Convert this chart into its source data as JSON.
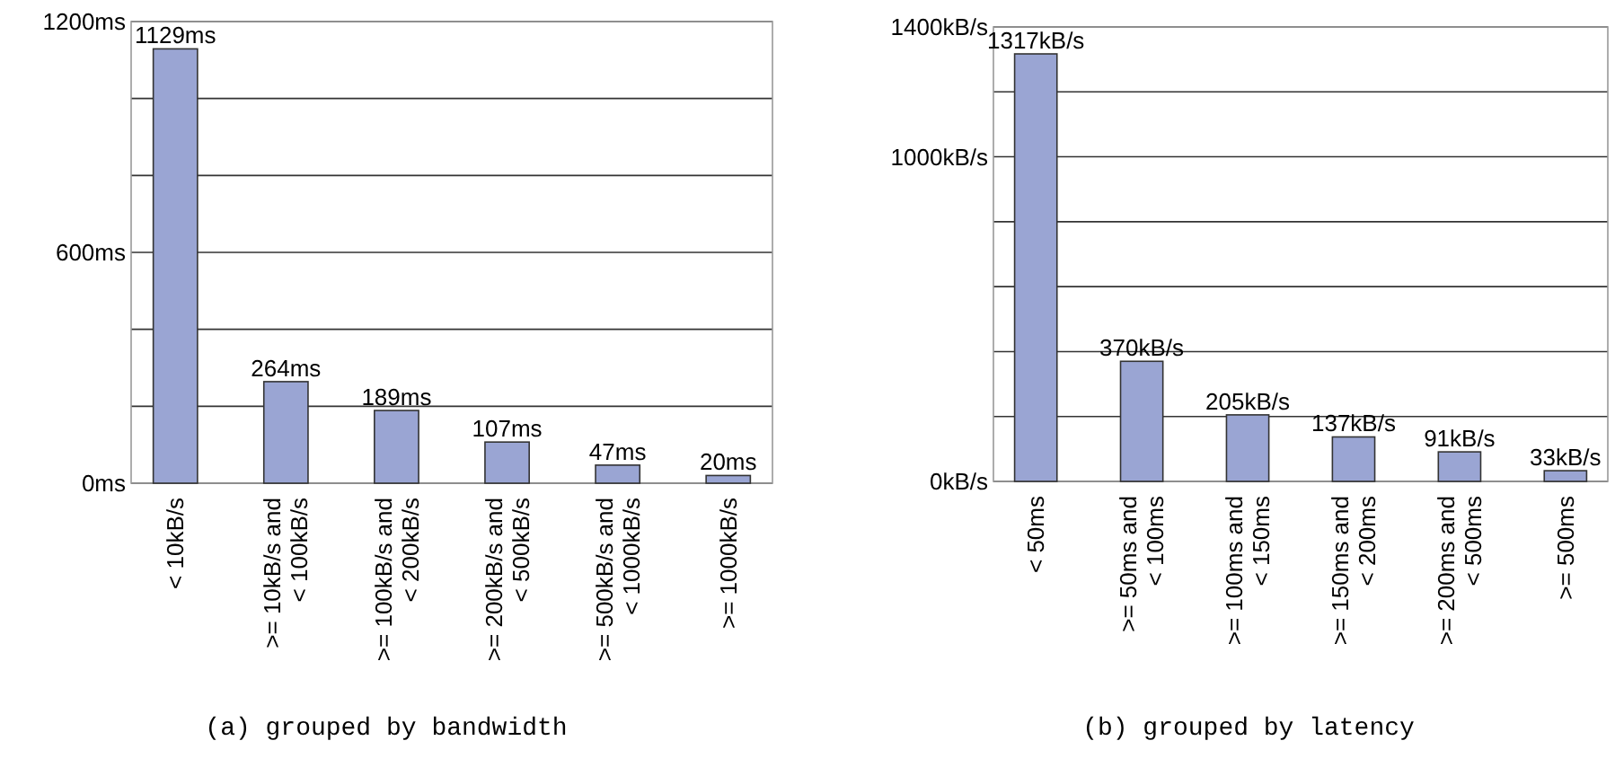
{
  "chart_data": [
    {
      "type": "bar",
      "title": "(a) grouped by bandwidth",
      "categories": [
        "< 10kB/s",
        ">= 10kB/s and\n< 100kB/s",
        ">= 100kB/s and\n< 200kB/s",
        ">= 200kB/s and\n< 500kB/s",
        ">= 500kB/s and\n< 1000kB/s",
        ">= 1000kB/s"
      ],
      "values": [
        1129,
        264,
        189,
        107,
        47,
        20
      ],
      "value_labels": [
        "1129ms",
        "264ms",
        "189ms",
        "107ms",
        "47ms",
        "20ms"
      ],
      "color": "#9aa5d3",
      "ylim": [
        0,
        1200
      ],
      "yticks": [
        {
          "value": 0,
          "label": "0ms"
        },
        {
          "value": 200,
          "label": null
        },
        {
          "value": 400,
          "label": null
        },
        {
          "value": 600,
          "label": "600ms"
        },
        {
          "value": 800,
          "label": null
        },
        {
          "value": 1000,
          "label": null
        },
        {
          "value": 1200,
          "label": "1200ms"
        }
      ],
      "grid": "y"
    },
    {
      "type": "bar",
      "title": "(b) grouped by latency",
      "categories": [
        "< 50ms",
        ">= 50ms and\n< 100ms",
        ">= 100ms and\n< 150ms",
        ">= 150ms and\n< 200ms",
        ">= 200ms and\n< 500ms",
        ">= 500ms"
      ],
      "values": [
        1317,
        370,
        205,
        137,
        91,
        33
      ],
      "value_labels": [
        "1317kB/s",
        "370kB/s",
        "205kB/s",
        "137kB/s",
        "91kB/s",
        "33kB/s"
      ],
      "color": "#9aa5d3",
      "ylim": [
        0,
        1400
      ],
      "yticks": [
        {
          "value": 0,
          "label": "0kB/s"
        },
        {
          "value": 200,
          "label": null
        },
        {
          "value": 400,
          "label": null
        },
        {
          "value": 600,
          "label": null
        },
        {
          "value": 800,
          "label": null
        },
        {
          "value": 1000,
          "label": "1000kB/s"
        },
        {
          "value": 1200,
          "label": null
        },
        {
          "value": 1400,
          "label": "1400kB/s"
        }
      ],
      "grid": "y"
    }
  ]
}
